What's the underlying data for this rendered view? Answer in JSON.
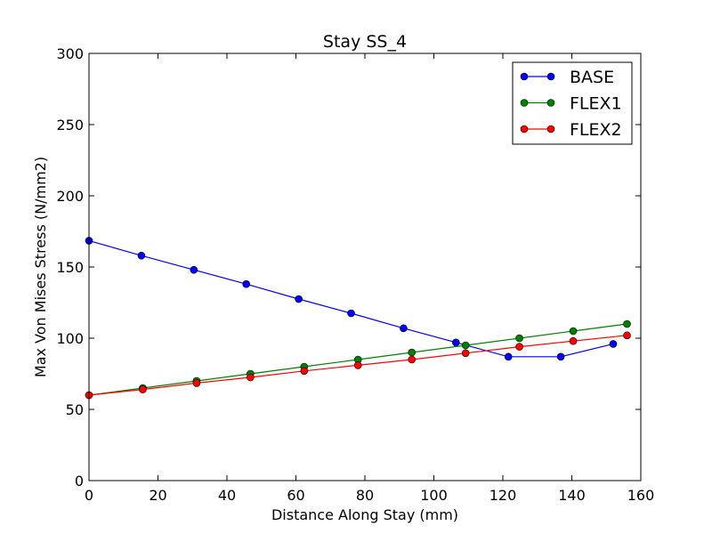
{
  "chart_data": {
    "type": "line",
    "title": "Stay SS_4",
    "xlabel": "Distance Along Stay (mm)",
    "ylabel": "Max Von Mises Stress (N/mm2)",
    "xlim": [
      0,
      160
    ],
    "ylim": [
      0,
      300
    ],
    "xticks": [
      0,
      20,
      40,
      60,
      80,
      100,
      120,
      140,
      160
    ],
    "yticks": [
      0,
      50,
      100,
      150,
      200,
      250,
      300
    ],
    "grid": false,
    "legend_position": "top-right",
    "series": [
      {
        "name": "BASE",
        "color": "#0000ff",
        "marker": "circle",
        "x": [
          0,
          15.2,
          30.4,
          45.6,
          60.8,
          76.0,
          91.2,
          106.4,
          121.6,
          136.8,
          152.0
        ],
        "y": [
          168.5,
          158.0,
          148.0,
          138.0,
          127.5,
          117.5,
          107.0,
          97.0,
          87.0,
          87.0,
          96.0
        ]
      },
      {
        "name": "FLEX1",
        "color": "#008000",
        "marker": "circle",
        "x": [
          0,
          15.6,
          31.2,
          46.8,
          62.4,
          78.0,
          93.6,
          109.2,
          124.8,
          140.4,
          156.0
        ],
        "y": [
          60,
          65,
          70,
          75,
          80,
          85,
          90,
          95,
          100,
          105,
          110
        ]
      },
      {
        "name": "FLEX2",
        "color": "#ff0000",
        "marker": "circle",
        "x": [
          0,
          15.6,
          31.2,
          46.8,
          62.4,
          78.0,
          93.6,
          109.2,
          124.8,
          140.4,
          156.0
        ],
        "y": [
          60,
          64,
          68.5,
          72.5,
          77,
          81,
          85,
          89.5,
          94,
          98,
          102
        ]
      }
    ]
  }
}
